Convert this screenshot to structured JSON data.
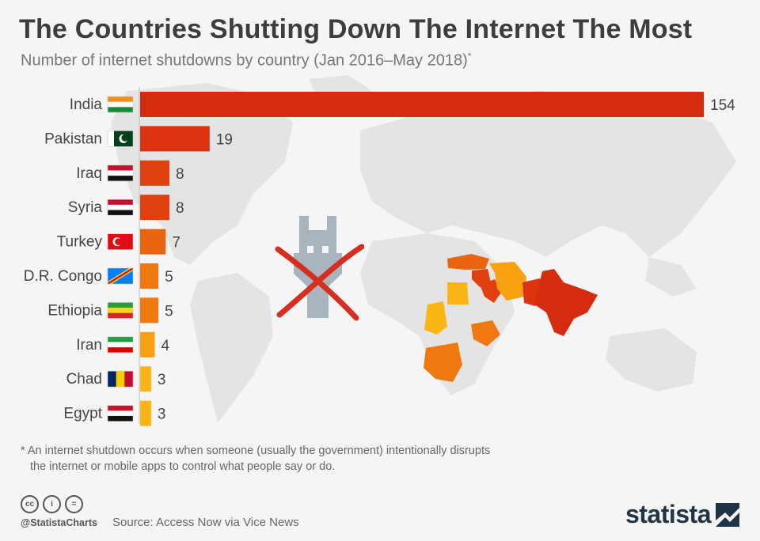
{
  "title": "The Countries Shutting Down The Internet The Most",
  "subtitle": "Number of internet shutdowns by country (Jan 2016–May 2018)",
  "subtitle_mark": "*",
  "footnote": {
    "line1": "* An internet shutdown occurs when someone (usually the government) intentionally disrupts",
    "line2": "the internet or mobile apps to control what people say or do."
  },
  "credit": "@StatistaCharts",
  "source": "Source: Access Now via Vice News",
  "brand": "statista",
  "icons": [
    "creative-commons-icon",
    "attribution-icon",
    "no-derivatives-icon",
    "blocked-internet-icon",
    "world-map-icon"
  ],
  "cc_labels": [
    "cc",
    "i",
    "="
  ],
  "colors": {
    "India": "#d52b0e",
    "Pakistan": "#dc3411",
    "Iraq": "#e0400f",
    "Syria": "#e0400f",
    "Turkey": "#e8640f",
    "D.R. Congo": "#f07810",
    "Ethiopia": "#f07810",
    "Iran": "#f8a010",
    "Chad": "#fbb514",
    "Egypt": "#fbb514",
    "map_base": "#e4e4e4",
    "brand": "#1f3446",
    "plug": "#a9b4bf",
    "cross": "#d62e20"
  },
  "chart_data": {
    "type": "bar",
    "orientation": "horizontal",
    "title": "The Countries Shutting Down The Internet The Most",
    "subtitle": "Number of internet shutdowns by country (Jan 2016–May 2018)",
    "categories": [
      "India",
      "Pakistan",
      "Iraq",
      "Syria",
      "Turkey",
      "D.R. Congo",
      "Ethiopia",
      "Iran",
      "Chad",
      "Egypt"
    ],
    "values": [
      154,
      19,
      8,
      8,
      7,
      5,
      5,
      4,
      3,
      3
    ],
    "xlabel": "",
    "ylabel": "",
    "xlim": [
      0,
      154
    ],
    "grid": false,
    "legend": "none",
    "data_labels": true
  }
}
